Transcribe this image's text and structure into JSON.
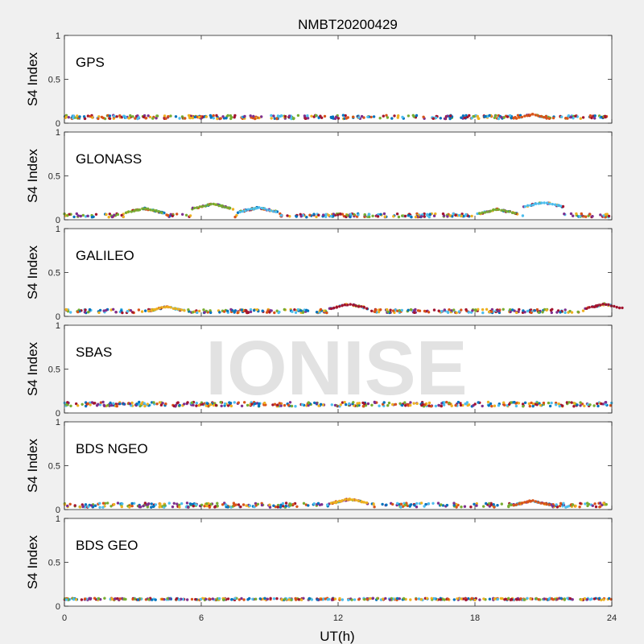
{
  "chart_data": {
    "type": "scatter",
    "title": "NMBT20200429",
    "xlabel": "UT(h)",
    "ylabel": "S4 Index",
    "xlim": [
      0,
      24
    ],
    "ylim": [
      0,
      1
    ],
    "xticks": [
      "0",
      "6",
      "12",
      "18",
      "24"
    ],
    "yticks": [
      "0",
      "0.5",
      "1"
    ],
    "grid": false,
    "watermark": "IONISE",
    "series_colors": [
      "#0072bd",
      "#d95319",
      "#edb120",
      "#7e2f8e",
      "#77ac30",
      "#4dbeee",
      "#a2142f"
    ],
    "panels": [
      {
        "label": "GPS",
        "level": 0.07,
        "spread": 0.02,
        "bumps": [
          {
            "x": 20.5,
            "y": 0.1,
            "color": "#d95319"
          }
        ]
      },
      {
        "label": "GLONASS",
        "level": 0.05,
        "spread": 0.02,
        "bumps": [
          {
            "x": 3.5,
            "y": 0.13,
            "color": "#77ac30"
          },
          {
            "x": 6.5,
            "y": 0.18,
            "color": "#77ac30"
          },
          {
            "x": 8.5,
            "y": 0.14,
            "color": "#4dbeee"
          },
          {
            "x": 19.0,
            "y": 0.12,
            "color": "#77ac30"
          },
          {
            "x": 21.0,
            "y": 0.2,
            "color": "#4dbeee"
          }
        ]
      },
      {
        "label": "GALILEO",
        "level": 0.06,
        "spread": 0.02,
        "bumps": [
          {
            "x": 4.5,
            "y": 0.11,
            "color": "#edb120"
          },
          {
            "x": 12.5,
            "y": 0.14,
            "color": "#a2142f"
          },
          {
            "x": 23.7,
            "y": 0.14,
            "color": "#a2142f"
          }
        ]
      },
      {
        "label": "SBAS",
        "level": 0.1,
        "spread": 0.025,
        "bumps": []
      },
      {
        "label": "BDS NGEO",
        "level": 0.05,
        "spread": 0.025,
        "bumps": [
          {
            "x": 12.5,
            "y": 0.12,
            "color": "#edb120"
          },
          {
            "x": 20.5,
            "y": 0.1,
            "color": "#d95319"
          }
        ]
      },
      {
        "label": "BDS GEO",
        "level": 0.08,
        "spread": 0.01,
        "bumps": []
      }
    ]
  }
}
